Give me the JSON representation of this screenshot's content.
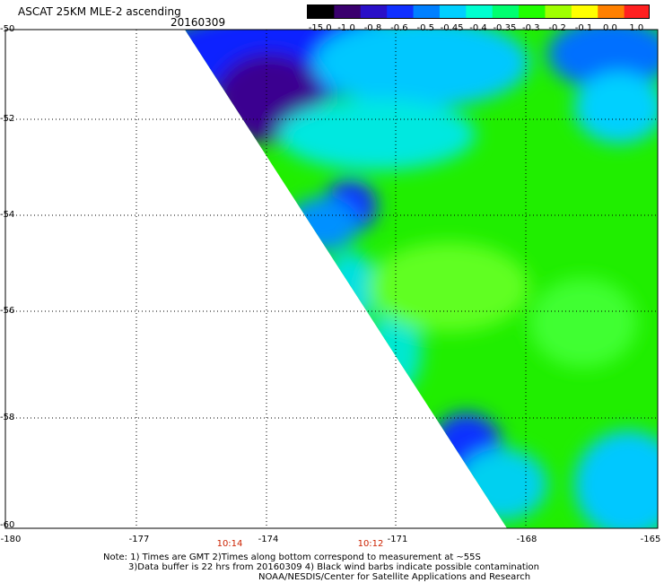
{
  "header": {
    "title": "ASCAT 25KM MLE-2 ascending",
    "date": "20160309"
  },
  "colorbar": {
    "labels": [
      "-15.0",
      "-1.0",
      "-0.8",
      "-0.6",
      "-0.5",
      "-0.45",
      "-0.4",
      "-0.35",
      "-0.3",
      "-0.2",
      "-0.1",
      "0.0",
      "1.0"
    ],
    "colors": [
      "#000000",
      "#3a006e",
      "#2a10c8",
      "#1030ff",
      "#0080ff",
      "#00d0ff",
      "#00ffd0",
      "#00ff70",
      "#20ff00",
      "#a0ff00",
      "#ffff00",
      "#ff8000",
      "#ff2020"
    ]
  },
  "map": {
    "lat_labels": [
      "-50",
      "-52",
      "-54",
      "-56",
      "-58",
      "-60"
    ],
    "lon_labels": [
      "-180",
      "-177",
      "-174",
      "-171",
      "-168",
      "-165"
    ],
    "time_labels": [
      "10:14",
      "10:12"
    ],
    "lat_range": [
      -60,
      -50
    ],
    "lon_range": [
      -180,
      -165
    ],
    "grid": true
  },
  "footer": {
    "note_line1": "Note: 1) Times are GMT 2)Times along bottom correspond to measurement at ~55S",
    "note_line2": "3)Data buffer is 22 hrs from 20160309 4) Black wind barbs indicate possible contamination",
    "credit": "NOAA/NESDIS/Center for Satellite Applications and Research"
  }
}
